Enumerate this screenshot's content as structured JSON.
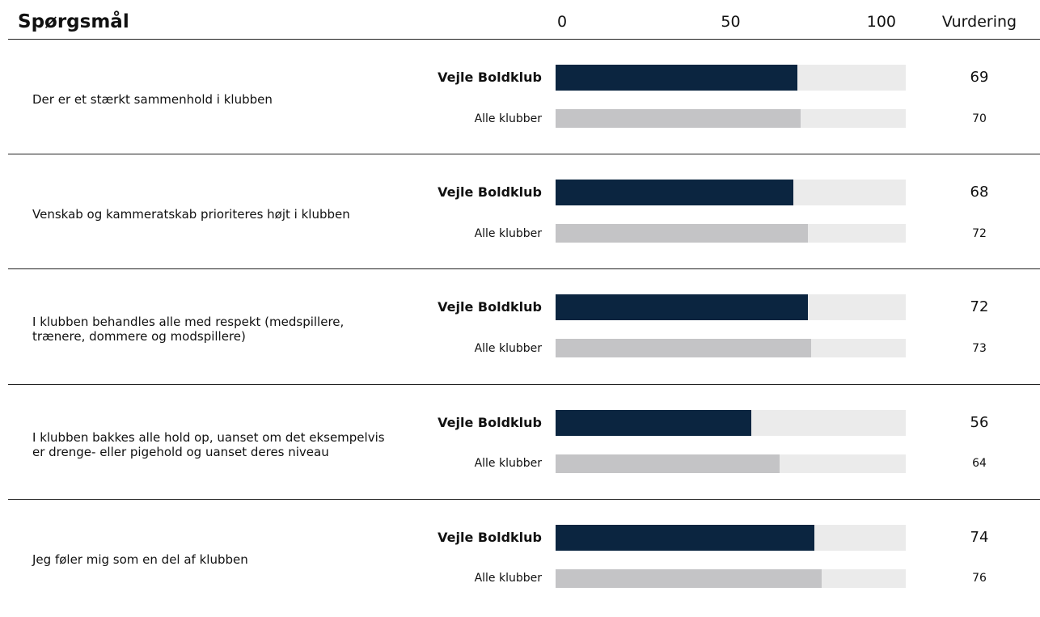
{
  "chart_data": {
    "type": "bar",
    "title": "Spørgsmål",
    "value_header": "Vurdering",
    "categories": [
      "Der er et stærkt sammenhold i klubben",
      "Venskab og kammeratskab prioriteres højt i klubben",
      "I klubben behandles alle med respekt (medspillere, trænere, dommere og modspillere)",
      "I klubben bakkes alle hold op, uanset om det eksempelvis er drenge- eller pigehold og uanset deres niveau",
      "Jeg føler mig som en del af klubben"
    ],
    "series": [
      {
        "name": "Vejle Boldklub",
        "color": "#0b2540",
        "values": [
          69,
          68,
          72,
          56,
          74
        ]
      },
      {
        "name": "Alle klubber",
        "color": "#c4c4c6",
        "values": [
          70,
          72,
          73,
          64,
          76
        ]
      }
    ],
    "xlim": [
      0,
      100
    ],
    "xticks": [
      0,
      50,
      100
    ],
    "track_color": "#ebebeb"
  }
}
